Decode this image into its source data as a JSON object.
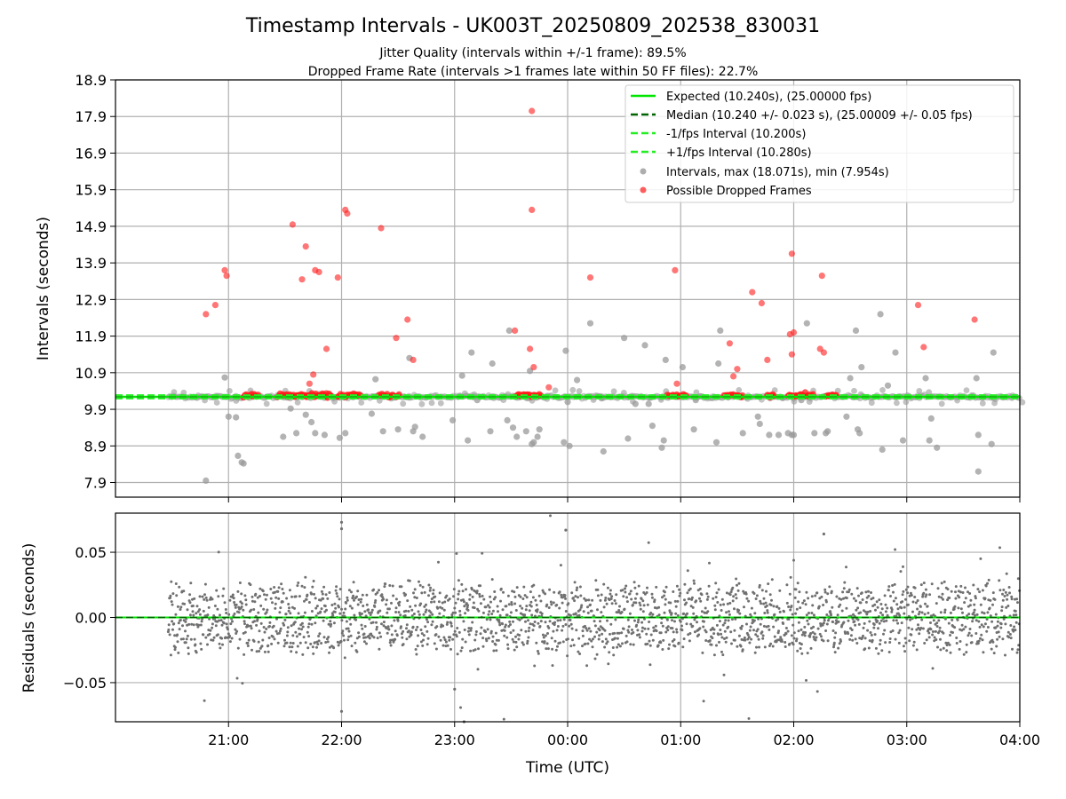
{
  "title": "Timestamp Intervals - UK003T_20250809_202538_830031",
  "subtitle_lines": [
    "Jitter Quality (intervals within +/-1 frame): 89.5%",
    "Dropped Frame Rate (intervals >1 frames late within 50 FF files): 22.7%"
  ],
  "colors": {
    "expected": "#00e600",
    "median": "#006400",
    "fps_band": "#22ee22",
    "intervals": "#999999",
    "dropped": "#ff1a1a",
    "residuals": "#707070",
    "grid": "#b0b0b0"
  },
  "chart_data": [
    {
      "type": "scatter",
      "name": "intervals",
      "xlabel": "",
      "ylabel": "Intervals (seconds)",
      "x_time_range": [
        "20:00",
        "04:00"
      ],
      "ylim": [
        7.5,
        18.9
      ],
      "y_ticks": [
        "7.9",
        "8.9",
        "9.9",
        "10.9",
        "11.9",
        "12.9",
        "13.9",
        "14.9",
        "15.9",
        "16.9",
        "17.9",
        "18.9"
      ],
      "grid": true,
      "legend_position": "top-right",
      "legend": [
        "Expected (10.240s), (25.00000 fps)",
        "Median (10.240 +/- 0.023 s), (25.00009 +/- 0.05 fps)",
        "-1/fps Interval (10.200s)",
        "+1/fps Interval (10.280s)",
        "Intervals, max (18.071s), min (7.954s)",
        "Possible Dropped Frames"
      ],
      "reference_lines": {
        "expected": 10.24,
        "median": 10.24,
        "minus_1_fps": 10.2,
        "plus_1_fps": 10.28
      },
      "data_start": "20:28",
      "data_end": "04:00",
      "outliers_intervals": [
        [
          "20:48",
          7.95
        ],
        [
          "20:58",
          10.77
        ],
        [
          "21:00",
          9.7
        ],
        [
          "21:04",
          9.68
        ],
        [
          "21:05",
          8.63
        ],
        [
          "21:07",
          8.45
        ],
        [
          "21:08",
          8.42
        ],
        [
          "21:29",
          9.15
        ],
        [
          "21:33",
          9.92
        ],
        [
          "21:36",
          9.25
        ],
        [
          "21:41",
          9.75
        ],
        [
          "21:44",
          9.55
        ],
        [
          "21:46",
          9.25
        ],
        [
          "21:51",
          9.2
        ],
        [
          "21:59",
          9.12
        ],
        [
          "22:02",
          9.25
        ],
        [
          "22:16",
          9.78
        ],
        [
          "22:18",
          10.72
        ],
        [
          "22:22",
          9.3
        ],
        [
          "22:30",
          9.35
        ],
        [
          "22:36",
          11.3
        ],
        [
          "22:38",
          9.3
        ],
        [
          "22:39",
          9.42
        ],
        [
          "22:43",
          9.15
        ],
        [
          "22:59",
          9.6
        ],
        [
          "23:04",
          10.82
        ],
        [
          "23:07",
          9.05
        ],
        [
          "23:09",
          11.45
        ],
        [
          "23:12",
          10.15
        ],
        [
          "23:19",
          9.3
        ],
        [
          "23:20",
          11.15
        ],
        [
          "23:28",
          9.6
        ],
        [
          "23:29",
          12.05
        ],
        [
          "23:31",
          9.4
        ],
        [
          "23:33",
          9.15
        ],
        [
          "23:38",
          9.3
        ],
        [
          "23:40",
          10.95
        ],
        [
          "23:41",
          8.95
        ],
        [
          "23:42",
          9.0
        ],
        [
          "23:44",
          9.15
        ],
        [
          "23:45",
          9.35
        ],
        [
          "23:58",
          9.0
        ],
        [
          "23:59",
          11.5
        ],
        [
          "00:00",
          10.1
        ],
        [
          "00:01",
          8.9
        ],
        [
          "00:05",
          10.7
        ],
        [
          "00:12",
          12.25
        ],
        [
          "00:18",
          10.2
        ],
        [
          "00:19",
          8.75
        ],
        [
          "00:30",
          11.85
        ],
        [
          "00:32",
          9.1
        ],
        [
          "00:36",
          10.05
        ],
        [
          "00:41",
          11.65
        ],
        [
          "00:43",
          10.05
        ],
        [
          "00:45",
          9.45
        ],
        [
          "00:50",
          8.85
        ],
        [
          "00:51",
          9.05
        ],
        [
          "00:52",
          11.25
        ],
        [
          "01:01",
          11.05
        ],
        [
          "01:07",
          9.35
        ],
        [
          "01:08",
          10.15
        ],
        [
          "01:19",
          9.0
        ],
        [
          "01:20",
          11.15
        ],
        [
          "01:21",
          12.05
        ],
        [
          "01:33",
          9.25
        ],
        [
          "01:41",
          9.7
        ],
        [
          "01:42",
          9.5
        ],
        [
          "01:47",
          9.2
        ],
        [
          "01:52",
          9.2
        ],
        [
          "01:57",
          9.25
        ],
        [
          "01:59",
          9.2
        ],
        [
          "02:00",
          9.2
        ],
        [
          "02:04",
          10.15
        ],
        [
          "02:07",
          12.25
        ],
        [
          "02:11",
          9.25
        ],
        [
          "02:17",
          9.25
        ],
        [
          "02:18",
          9.3
        ],
        [
          "02:28",
          9.7
        ],
        [
          "02:30",
          10.75
        ],
        [
          "02:33",
          12.05
        ],
        [
          "02:34",
          9.35
        ],
        [
          "02:35",
          9.25
        ],
        [
          "02:36",
          11.05
        ],
        [
          "02:46",
          12.5
        ],
        [
          "02:47",
          8.8
        ],
        [
          "02:50",
          10.55
        ],
        [
          "02:54",
          11.45
        ],
        [
          "02:58",
          9.05
        ],
        [
          "03:10",
          10.75
        ],
        [
          "03:12",
          9.05
        ],
        [
          "03:13",
          9.65
        ],
        [
          "03:16",
          8.85
        ],
        [
          "03:37",
          10.75
        ],
        [
          "03:38",
          9.2
        ],
        [
          "03:38",
          8.2
        ],
        [
          "03:46",
          11.45
        ],
        [
          "03:45",
          8.95
        ]
      ],
      "possible_dropped_frames": [
        [
          "20:48",
          12.5
        ],
        [
          "20:53",
          12.75
        ],
        [
          "20:58",
          13.7
        ],
        [
          "20:59",
          13.55
        ],
        [
          "21:34",
          14.95
        ],
        [
          "21:41",
          14.35
        ],
        [
          "21:39",
          13.45
        ],
        [
          "21:43",
          10.6
        ],
        [
          "21:45",
          10.85
        ],
        [
          "21:46",
          13.7
        ],
        [
          "21:48",
          13.65
        ],
        [
          "21:52",
          11.55
        ],
        [
          "21:58",
          13.5
        ],
        [
          "22:03",
          15.25
        ],
        [
          "22:02",
          15.35
        ],
        [
          "22:21",
          14.85
        ],
        [
          "22:29",
          11.85
        ],
        [
          "22:35",
          12.35
        ],
        [
          "22:38",
          11.25
        ],
        [
          "23:32",
          12.05
        ],
        [
          "23:40",
          11.55
        ],
        [
          "23:41",
          15.35
        ],
        [
          "23:41",
          18.05
        ],
        [
          "23:42",
          11.05
        ],
        [
          "23:50",
          10.5
        ],
        [
          "00:12",
          13.5
        ],
        [
          "00:58",
          10.6
        ],
        [
          "00:57",
          13.7
        ],
        [
          "01:26",
          11.7
        ],
        [
          "01:28",
          10.8
        ],
        [
          "01:30",
          11.0
        ],
        [
          "01:38",
          13.1
        ],
        [
          "01:43",
          12.8
        ],
        [
          "01:46",
          11.25
        ],
        [
          "01:59",
          14.15
        ],
        [
          "01:59",
          11.4
        ],
        [
          "02:00",
          12.0
        ],
        [
          "02:14",
          11.55
        ],
        [
          "02:15",
          13.55
        ],
        [
          "02:16",
          11.45
        ],
        [
          "03:06",
          12.75
        ],
        [
          "03:09",
          11.6
        ],
        [
          "03:36",
          12.35
        ],
        [
          "01:58",
          11.95
        ]
      ],
      "dropped_clusters_near_expected": [
        [
          "21:08",
          "21:16"
        ],
        [
          "21:26",
          "21:55"
        ],
        [
          "21:58",
          "22:10"
        ],
        [
          "22:20",
          "22:31"
        ],
        [
          "23:33",
          "23:46"
        ],
        [
          "00:53",
          "01:03"
        ],
        [
          "01:23",
          "01:33"
        ],
        [
          "01:46",
          "01:50"
        ],
        [
          "01:57",
          "02:11"
        ],
        [
          "02:17",
          "02:23"
        ]
      ]
    },
    {
      "type": "scatter",
      "name": "residuals",
      "xlabel": "Time (UTC)",
      "ylabel": "Residuals (seconds)",
      "x_ticks": [
        "21:00",
        "22:00",
        "23:00",
        "00:00",
        "01:00",
        "02:00",
        "03:00",
        "04:00"
      ],
      "ylim": [
        -0.08,
        0.08
      ],
      "y_ticks": [
        "−0.05",
        "0.00",
        "0.05"
      ],
      "grid": true,
      "data_start": "20:28",
      "data_end": "04:00",
      "residual_spread_typical": 0.03,
      "residual_extremes": [
        [
          "22:00",
          0.073
        ],
        [
          "22:00",
          0.068
        ],
        [
          "22:00",
          -0.072
        ],
        [
          "23:59",
          0.067
        ],
        [
          "02:16",
          0.064
        ],
        [
          "23:00",
          -0.055
        ],
        [
          "23:05",
          -0.08
        ]
      ]
    }
  ]
}
